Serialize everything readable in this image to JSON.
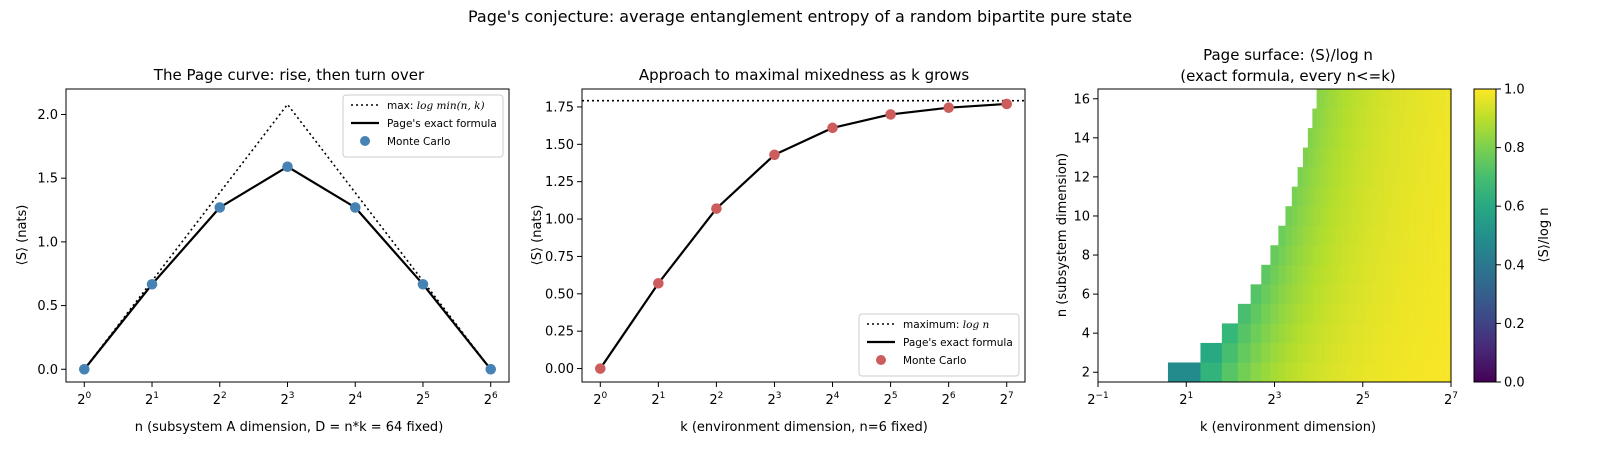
{
  "suptitle": "Page's conjecture: average entanglement entropy of a random bipartite pure state",
  "chart_data": [
    {
      "type": "line",
      "title": "The Page curve: rise, then turn over",
      "xlabel": "n (subsystem A dimension, D = n*k = 64 fixed)",
      "ylabel": "⟨S⟩ (nats)",
      "x_scale": "log2",
      "x": [
        1,
        2,
        4,
        8,
        16,
        32,
        64
      ],
      "x_ticks": [
        {
          "base": "2",
          "exp": "0"
        },
        {
          "base": "2",
          "exp": "1"
        },
        {
          "base": "2",
          "exp": "2"
        },
        {
          "base": "2",
          "exp": "3"
        },
        {
          "base": "2",
          "exp": "4"
        },
        {
          "base": "2",
          "exp": "5"
        },
        {
          "base": "2",
          "exp": "6"
        }
      ],
      "y_ticks": [
        "0.0",
        "0.5",
        "1.0",
        "1.5",
        "2.0"
      ],
      "ylim": [
        -0.1,
        2.2
      ],
      "legend_position": "top-right",
      "series": [
        {
          "name": "max: log min(n, k)",
          "style": "dotted",
          "values": [
            0,
            0.693,
            1.386,
            2.079,
            1.386,
            0.693,
            0
          ]
        },
        {
          "name": "Page's exact formula",
          "style": "solid",
          "values": [
            0,
            0.667,
            1.27,
            1.59,
            1.27,
            0.667,
            0
          ]
        },
        {
          "name": "Monte Carlo",
          "style": "markers",
          "values": [
            0,
            0.667,
            1.27,
            1.59,
            1.27,
            0.667,
            0
          ]
        }
      ],
      "legend": {
        "max_text": "max: ",
        "max_math": "log min(n, k)",
        "exact": "Page's exact formula",
        "mc": "Monte Carlo"
      }
    },
    {
      "type": "line",
      "title": "Approach to maximal mixedness as k grows",
      "xlabel": "k (environment dimension, n=6 fixed)",
      "ylabel": "⟨S⟩ (nats)",
      "x_scale": "log2",
      "x": [
        1,
        2,
        4,
        8,
        16,
        32,
        64,
        128
      ],
      "x_ticks": [
        {
          "base": "2",
          "exp": "0"
        },
        {
          "base": "2",
          "exp": "1"
        },
        {
          "base": "2",
          "exp": "2"
        },
        {
          "base": "2",
          "exp": "3"
        },
        {
          "base": "2",
          "exp": "4"
        },
        {
          "base": "2",
          "exp": "5"
        },
        {
          "base": "2",
          "exp": "6"
        },
        {
          "base": "2",
          "exp": "7"
        }
      ],
      "y_ticks": [
        "0.00",
        "0.25",
        "0.50",
        "0.75",
        "1.00",
        "1.25",
        "1.50",
        "1.75"
      ],
      "ylim": [
        -0.09,
        1.87
      ],
      "legend_position": "bottom-right",
      "hline": 1.792,
      "series": [
        {
          "name": "Page's exact formula",
          "style": "solid",
          "values": [
            0,
            0.57,
            1.07,
            1.43,
            1.61,
            1.7,
            1.745,
            1.77
          ]
        },
        {
          "name": "Monte Carlo",
          "style": "markers",
          "values": [
            0,
            0.57,
            1.07,
            1.43,
            1.61,
            1.7,
            1.745,
            1.77
          ]
        }
      ],
      "legend": {
        "max_text": "maximum: ",
        "max_math": "log n",
        "exact": "Page's exact formula",
        "mc": "Monte Carlo"
      }
    },
    {
      "type": "heatmap",
      "title_line1": "Page surface: ⟨S⟩/log n",
      "title_line2": "(exact formula, every n<=k)",
      "xlabel": "k (environment dimension)",
      "ylabel": "n (subsystem dimension)",
      "x_scale": "log2",
      "xlim_log2": [
        -1,
        7
      ],
      "x_ticks": [
        {
          "base": "2",
          "exp": "−1"
        },
        {
          "base": "2",
          "exp": "1"
        },
        {
          "base": "2",
          "exp": "3"
        },
        {
          "base": "2",
          "exp": "5"
        },
        {
          "base": "2",
          "exp": "7"
        }
      ],
      "ylim": [
        1.5,
        16.5
      ],
      "y_ticks": [
        "2",
        "4",
        "6",
        "8",
        "10",
        "12",
        "14",
        "16"
      ],
      "n_range": [
        2,
        16
      ],
      "k_range": [
        2,
        128
      ],
      "colormap": "viridis",
      "colorbar": {
        "range": [
          0,
          1
        ],
        "ticks": [
          "0.0",
          "0.2",
          "0.4",
          "0.6",
          "0.8",
          "1.0"
        ],
        "label": "⟨S⟩/log n"
      }
    }
  ]
}
